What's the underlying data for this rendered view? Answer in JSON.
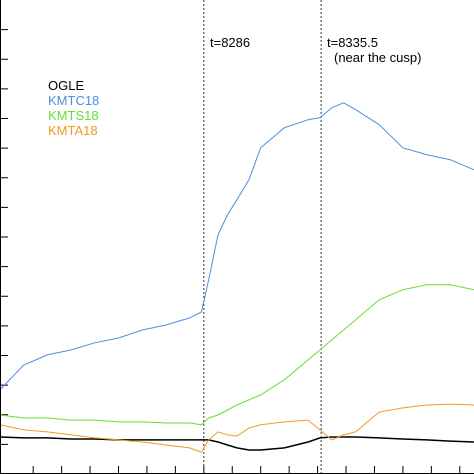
{
  "chart_data": {
    "type": "line",
    "x": [
      8200,
      8210,
      8220,
      8230,
      8240,
      8250,
      8260,
      8270,
      8280,
      8285,
      8288,
      8292,
      8296,
      8300,
      8305,
      8310,
      8320,
      8330,
      8335,
      8340,
      8345,
      8350,
      8360,
      8370,
      8380,
      8390,
      8400
    ],
    "series": [
      {
        "name": "OGLE",
        "color": "#000000",
        "values": [
          1.25,
          1.22,
          1.22,
          1.18,
          1.18,
          1.15,
          1.15,
          1.15,
          1.15,
          1.15,
          1.15,
          1.08,
          0.98,
          0.88,
          0.81,
          0.81,
          0.88,
          1.08,
          1.22,
          1.25,
          1.25,
          1.25,
          1.22,
          1.18,
          1.15,
          1.11,
          1.08
        ]
      },
      {
        "name": "KMTC18",
        "color": "#4d90e0",
        "values": [
          2.84,
          3.68,
          4.02,
          4.19,
          4.43,
          4.59,
          4.86,
          5.03,
          5.27,
          5.47,
          6.55,
          8.07,
          8.75,
          9.26,
          9.93,
          11.01,
          11.69,
          11.96,
          12.03,
          12.36,
          12.53,
          12.3,
          11.79,
          11.01,
          10.78,
          10.61,
          10.27
        ]
      },
      {
        "name": "KMTS18",
        "color": "#66dd33",
        "values": [
          1.99,
          1.89,
          1.89,
          1.82,
          1.82,
          1.76,
          1.76,
          1.72,
          1.72,
          1.66,
          1.89,
          1.99,
          2.16,
          2.33,
          2.5,
          2.67,
          3.18,
          3.85,
          4.19,
          4.53,
          4.86,
          5.2,
          5.88,
          6.22,
          6.39,
          6.39,
          6.22
        ]
      },
      {
        "name": "KMTA18",
        "color": "#f59a20",
        "values": [
          1.66,
          1.49,
          1.42,
          1.32,
          1.22,
          1.15,
          1.08,
          0.98,
          0.88,
          0.74,
          1.15,
          1.42,
          1.32,
          1.28,
          1.55,
          1.66,
          1.76,
          1.82,
          1.49,
          1.15,
          1.32,
          1.42,
          2.09,
          2.23,
          2.33,
          2.36,
          2.33
        ]
      }
    ],
    "xlim": [
      8200,
      8400
    ],
    "ylim": [
      0,
      16
    ],
    "xticks": [
      8214,
      8226,
      8238,
      8250,
      8262,
      8274,
      8286,
      8298,
      8310,
      8322,
      8334,
      8346,
      8358,
      8370,
      8382,
      8394
    ],
    "yticks": [
      1,
      2,
      3,
      4,
      5,
      6,
      7,
      8,
      9,
      10,
      11,
      12,
      13,
      14,
      15
    ],
    "legend": "upper left",
    "vlines": [
      8286,
      8335.5
    ],
    "annotations": [
      "t=8286",
      "t=8335.5",
      "(near the cusp)"
    ]
  }
}
